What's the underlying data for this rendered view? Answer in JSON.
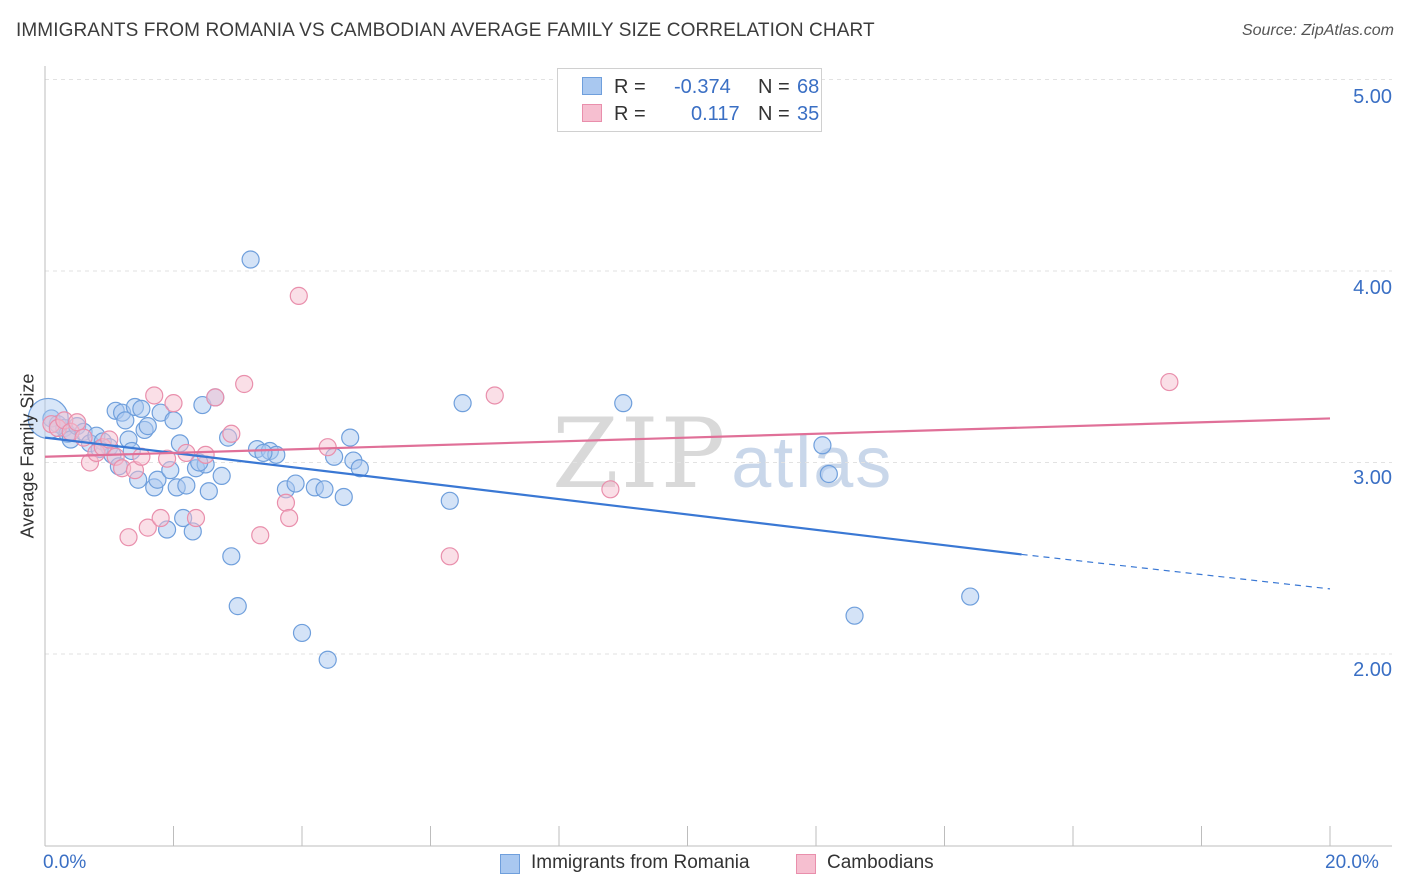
{
  "title": "IMMIGRANTS FROM ROMANIA VS CAMBODIAN AVERAGE FAMILY SIZE CORRELATION CHART",
  "source": "Source: ZipAtlas.com",
  "watermark": {
    "zip": "ZIP",
    "atlas": "atlas"
  },
  "legend": {
    "rows": [
      {
        "r_label": "R =",
        "r_value": "-0.374",
        "n_label": "N =",
        "n_value": "68"
      },
      {
        "r_label": "R =",
        "r_value": "0.117",
        "n_label": "N =",
        "n_value": "35"
      }
    ]
  },
  "bottom_legend": {
    "series1": "Immigrants from Romania",
    "series2": "Cambodians"
  },
  "axes": {
    "ylabel": "Average Family Size",
    "y_ticks": [
      "5.00",
      "4.00",
      "3.00",
      "2.00"
    ],
    "x_min_label": "0.0%",
    "x_max_label": "20.0%"
  },
  "colors": {
    "blue_fill": "#a9c8f0",
    "blue_stroke": "#6f9fdc",
    "blue_line": "#3a78d4",
    "pink_fill": "#f6bfd0",
    "pink_stroke": "#e98fac",
    "pink_line": "#e07098",
    "tick_text": "#3a6fc4"
  },
  "chart_data": {
    "type": "scatter",
    "xlabel": "",
    "ylabel": "Average Family Size",
    "xlim": [
      0,
      20
    ],
    "ylim": [
      1.0,
      5.1
    ],
    "grid": true,
    "series": [
      {
        "name": "Immigrants from Romania",
        "R": -0.374,
        "N": 68,
        "points": [
          [
            0.1,
            3.23
          ],
          [
            0.2,
            3.2
          ],
          [
            0.3,
            3.18
          ],
          [
            0.35,
            3.15
          ],
          [
            0.4,
            3.12
          ],
          [
            0.5,
            3.19
          ],
          [
            0.6,
            3.16
          ],
          [
            0.7,
            3.1
          ],
          [
            0.8,
            3.14
          ],
          [
            0.9,
            3.11
          ],
          [
            1.0,
            3.08
          ],
          [
            1.05,
            3.04
          ],
          [
            1.1,
            3.27
          ],
          [
            1.2,
            3.26
          ],
          [
            1.25,
            3.22
          ],
          [
            1.3,
            3.12
          ],
          [
            1.35,
            3.06
          ],
          [
            1.4,
            3.29
          ],
          [
            1.45,
            2.91
          ],
          [
            1.5,
            3.28
          ],
          [
            1.55,
            3.17
          ],
          [
            1.6,
            3.19
          ],
          [
            1.7,
            2.87
          ],
          [
            1.75,
            2.91
          ],
          [
            1.8,
            3.26
          ],
          [
            1.9,
            2.65
          ],
          [
            1.95,
            2.96
          ],
          [
            2.0,
            3.22
          ],
          [
            2.05,
            2.87
          ],
          [
            2.1,
            3.1
          ],
          [
            2.15,
            2.71
          ],
          [
            2.2,
            2.88
          ],
          [
            2.3,
            2.64
          ],
          [
            2.35,
            2.97
          ],
          [
            2.45,
            3.3
          ],
          [
            2.5,
            2.99
          ],
          [
            2.55,
            2.85
          ],
          [
            2.65,
            3.34
          ],
          [
            2.75,
            2.93
          ],
          [
            2.85,
            3.13
          ],
          [
            2.9,
            2.51
          ],
          [
            3.0,
            2.25
          ],
          [
            3.2,
            4.06
          ],
          [
            3.3,
            3.07
          ],
          [
            3.5,
            3.06
          ],
          [
            3.6,
            3.04
          ],
          [
            3.75,
            2.86
          ],
          [
            3.9,
            2.89
          ],
          [
            4.0,
            2.11
          ],
          [
            4.2,
            2.87
          ],
          [
            4.35,
            2.86
          ],
          [
            4.4,
            1.97
          ],
          [
            4.5,
            3.03
          ],
          [
            4.65,
            2.82
          ],
          [
            4.75,
            3.13
          ],
          [
            4.8,
            3.01
          ],
          [
            4.9,
            2.97
          ],
          [
            6.3,
            2.8
          ],
          [
            6.5,
            3.31
          ],
          [
            9.0,
            3.31
          ],
          [
            12.1,
            3.09
          ],
          [
            12.2,
            2.94
          ],
          [
            12.6,
            2.2
          ],
          [
            14.4,
            2.3
          ],
          [
            2.4,
            3.0
          ],
          [
            1.15,
            2.98
          ],
          [
            0.85,
            3.07
          ],
          [
            3.4,
            3.05
          ]
        ],
        "trend": {
          "x0": 0,
          "y0": 3.13,
          "x1": 15.2,
          "y1": 2.52,
          "dash_to_x": 20,
          "dash_to_y": 2.34
        }
      },
      {
        "name": "Cambodians",
        "R": 0.117,
        "N": 35,
        "points": [
          [
            0.1,
            3.2
          ],
          [
            0.2,
            3.18
          ],
          [
            0.3,
            3.22
          ],
          [
            0.4,
            3.16
          ],
          [
            0.5,
            3.21
          ],
          [
            0.6,
            3.13
          ],
          [
            0.7,
            3.0
          ],
          [
            0.8,
            3.05
          ],
          [
            0.9,
            3.08
          ],
          [
            1.0,
            3.12
          ],
          [
            1.1,
            3.03
          ],
          [
            1.2,
            2.97
          ],
          [
            1.3,
            2.61
          ],
          [
            1.4,
            2.96
          ],
          [
            1.5,
            3.03
          ],
          [
            1.6,
            2.66
          ],
          [
            1.7,
            3.35
          ],
          [
            1.8,
            2.71
          ],
          [
            1.9,
            3.02
          ],
          [
            2.0,
            3.31
          ],
          [
            2.2,
            3.05
          ],
          [
            2.35,
            2.71
          ],
          [
            2.5,
            3.04
          ],
          [
            2.65,
            3.34
          ],
          [
            2.9,
            3.15
          ],
          [
            3.1,
            3.41
          ],
          [
            3.35,
            2.62
          ],
          [
            3.75,
            2.79
          ],
          [
            3.8,
            2.71
          ],
          [
            3.95,
            3.87
          ],
          [
            4.4,
            3.08
          ],
          [
            6.3,
            2.51
          ],
          [
            7.0,
            3.35
          ],
          [
            8.8,
            2.86
          ],
          [
            17.5,
            3.42
          ]
        ],
        "trend": {
          "x0": 0,
          "y0": 3.03,
          "x1": 20,
          "y1": 3.23
        }
      }
    ]
  }
}
